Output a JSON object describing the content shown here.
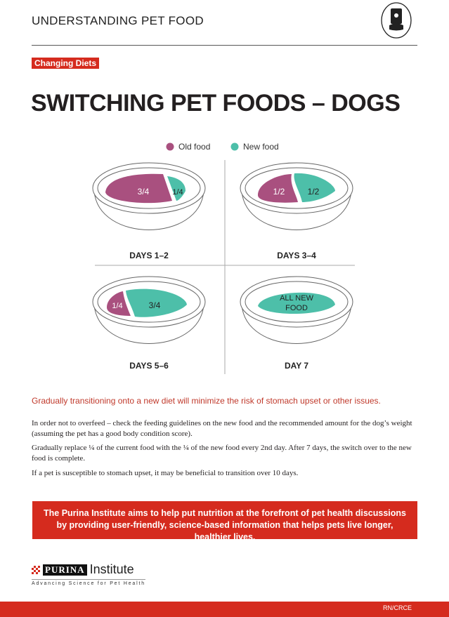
{
  "header": {
    "title": "UNDERSTANDING PET FOOD",
    "icon": "pet-food-bag-bowl-icon"
  },
  "tag": "Changing Diets",
  "title": "SWITCHING PET FOODS – DOGS",
  "legend": {
    "old": "Old food",
    "new": "New food",
    "old_color": "#a9507f",
    "new_color": "#4dbfa9"
  },
  "bowls": [
    {
      "label": "DAYS 1–2",
      "old": "3/4",
      "new": "1/4"
    },
    {
      "label": "DAYS 3–4",
      "old": "1/2",
      "new": "1/2"
    },
    {
      "label": "DAYS 5–6",
      "old": "1/4",
      "new": "3/4"
    },
    {
      "label": "DAY 7",
      "new_line1": "ALL NEW",
      "new_line2": "FOOD"
    }
  ],
  "subheading": "Gradually transitioning onto a new diet will minimize the risk of stomach upset or other issues.",
  "paragraphs": [
    "In order not to overfeed – check the feeding guidelines on the new food and the recommended amount for the dog’s weight (assuming the pet has a good body condition score).",
    "Gradually replace ¼ of the current food with the ¼ of the new food every 2nd day. After 7 days, the switch over to the new food is complete.",
    "If a pet is susceptible to stomach upset, it may be beneficial to transition over 10 days."
  ],
  "banner": "The Purina Institute aims to help put nutrition at the forefront of pet health discussions by providing user-friendly, science-based information that helps pets live longer, healthier lives.",
  "logo": {
    "brand": "PURINA",
    "name": "Institute",
    "tagline": "Advancing Science for Pet Health"
  },
  "footer": {
    "code": "RN/CRCE"
  },
  "colors": {
    "red": "#d52b1e"
  }
}
